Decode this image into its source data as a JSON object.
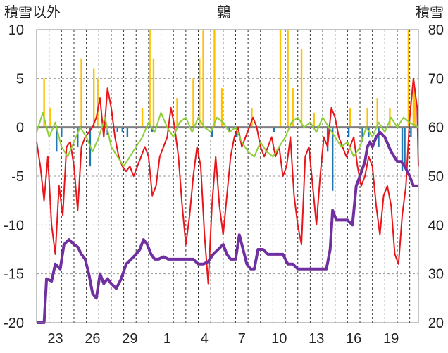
{
  "chart_data": {
    "type": "line",
    "title": "鶉",
    "left_axis_label": "積雪以外",
    "right_axis_label": "積雪",
    "left_axis": {
      "ylim": [
        -20,
        10
      ],
      "ticks": [
        10,
        5,
        0,
        -5,
        -10,
        -15,
        -20
      ]
    },
    "right_axis": {
      "ylim": [
        20,
        80
      ],
      "ticks": [
        80,
        70,
        60,
        50,
        40,
        30,
        20
      ]
    },
    "x_tick_labels": [
      "23",
      "26",
      "29",
      "1",
      "4",
      "7",
      "10",
      "13",
      "16",
      "19"
    ],
    "x_tick_day_index": [
      2,
      5,
      8,
      11,
      14,
      17,
      20,
      23,
      26,
      29
    ],
    "x_range_days": [
      0,
      30.7
    ],
    "grid": true,
    "colors": {
      "temperature_red": "#e8161b",
      "precip_yellow": "#ffc000",
      "bar_blue": "#1f77b4",
      "green": "#8fce3a",
      "snow_purple": "#7030a0",
      "zero_line": "#808080",
      "grid": "#999999",
      "frame": "#888888"
    },
    "series": [
      {
        "axis": "left",
        "style": "line",
        "color": "#e8161b",
        "points": [
          [
            0,
            -1.5
          ],
          [
            0.3,
            -4
          ],
          [
            0.6,
            -7.5
          ],
          [
            0.9,
            -3
          ],
          [
            1.2,
            -10
          ],
          [
            1.5,
            -13
          ],
          [
            1.8,
            -6
          ],
          [
            2.1,
            -9
          ],
          [
            2.4,
            -2
          ],
          [
            2.7,
            -1.5
          ],
          [
            3,
            -4
          ],
          [
            3.3,
            -8.5
          ],
          [
            3.6,
            -2
          ],
          [
            3.9,
            -1
          ],
          [
            4.2,
            -0.5
          ],
          [
            4.5,
            0
          ],
          [
            4.8,
            1
          ],
          [
            5.1,
            3
          ],
          [
            5.4,
            -1
          ],
          [
            5.7,
            4
          ],
          [
            6,
            2
          ],
          [
            6.3,
            -1
          ],
          [
            6.6,
            -3
          ],
          [
            6.9,
            -4
          ],
          [
            7.2,
            -4.5
          ],
          [
            7.5,
            -4
          ],
          [
            7.8,
            -5
          ],
          [
            8.1,
            -4
          ],
          [
            8.4,
            -3
          ],
          [
            8.7,
            -2
          ],
          [
            9,
            -3
          ],
          [
            9.3,
            -7
          ],
          [
            9.6,
            -6
          ],
          [
            9.9,
            -3
          ],
          [
            10.2,
            -2
          ],
          [
            10.5,
            -1
          ],
          [
            10.8,
            2
          ],
          [
            11.1,
            0
          ],
          [
            11.4,
            -3
          ],
          [
            11.7,
            -8
          ],
          [
            12,
            -12
          ],
          [
            12.3,
            -9
          ],
          [
            12.6,
            -5
          ],
          [
            12.9,
            -2
          ],
          [
            13.2,
            -4
          ],
          [
            13.5,
            -11
          ],
          [
            13.8,
            -16
          ],
          [
            14.1,
            -8
          ],
          [
            14.4,
            -3
          ],
          [
            14.7,
            -8
          ],
          [
            15,
            -11
          ],
          [
            15.3,
            -7
          ],
          [
            15.6,
            -3
          ],
          [
            15.9,
            -1
          ],
          [
            16.2,
            0
          ],
          [
            16.5,
            -2
          ],
          [
            16.8,
            -1
          ],
          [
            17.1,
            0
          ],
          [
            17.4,
            1
          ],
          [
            17.7,
            0
          ],
          [
            18,
            -2
          ],
          [
            18.3,
            -3
          ],
          [
            18.6,
            -2
          ],
          [
            18.9,
            -1
          ],
          [
            19.2,
            -3
          ],
          [
            19.5,
            -2
          ],
          [
            19.8,
            -5
          ],
          [
            20.1,
            -4
          ],
          [
            20.4,
            -1
          ],
          [
            20.7,
            -7
          ],
          [
            21,
            -10
          ],
          [
            21.3,
            -12
          ],
          [
            21.6,
            -3
          ],
          [
            21.9,
            -2
          ],
          [
            22.2,
            -6
          ],
          [
            22.5,
            -10
          ],
          [
            22.8,
            -5
          ],
          [
            23.1,
            -1
          ],
          [
            23.4,
            -2
          ],
          [
            23.7,
            2
          ],
          [
            24,
            1
          ],
          [
            24.3,
            -1
          ],
          [
            24.6,
            -2
          ],
          [
            24.9,
            -3
          ],
          [
            25.2,
            -2
          ],
          [
            25.5,
            -1
          ],
          [
            25.8,
            -4
          ],
          [
            26.1,
            -6
          ],
          [
            26.4,
            -5
          ],
          [
            26.7,
            -3
          ],
          [
            27,
            -4
          ],
          [
            27.3,
            -8
          ],
          [
            27.6,
            -11
          ],
          [
            27.9,
            -7
          ],
          [
            28.2,
            -6
          ],
          [
            28.5,
            -8
          ],
          [
            28.8,
            -13
          ],
          [
            29.1,
            -14
          ],
          [
            29.4,
            -9
          ],
          [
            29.7,
            -6
          ],
          [
            30,
            1
          ],
          [
            30.3,
            5
          ],
          [
            30.6,
            2
          ],
          [
            30.7,
            -4
          ]
        ]
      },
      {
        "axis": "left",
        "style": "line",
        "color": "#8fce3a",
        "points": [
          [
            0,
            -0.5
          ],
          [
            0.5,
            1.5
          ],
          [
            1,
            -1
          ],
          [
            1.5,
            0.5
          ],
          [
            2,
            -2
          ],
          [
            2.5,
            -3
          ],
          [
            3,
            -1.5
          ],
          [
            3.5,
            0
          ],
          [
            4,
            -1
          ],
          [
            4.5,
            -2.5
          ],
          [
            5,
            -1
          ],
          [
            5.5,
            1
          ],
          [
            6,
            -2
          ],
          [
            6.5,
            -3
          ],
          [
            7,
            -4
          ],
          [
            7.5,
            -3
          ],
          [
            8,
            -2
          ],
          [
            8.5,
            -1
          ],
          [
            9,
            0.5
          ],
          [
            9.5,
            -0.5
          ],
          [
            10,
            1.5
          ],
          [
            10.5,
            0
          ],
          [
            11,
            -1
          ],
          [
            11.5,
            0.5
          ],
          [
            12,
            1
          ],
          [
            12.5,
            -0.5
          ],
          [
            13,
            1
          ],
          [
            13.5,
            0
          ],
          [
            14,
            -0.5
          ],
          [
            14.5,
            1
          ],
          [
            15,
            0.5
          ],
          [
            15.5,
            -0.5
          ],
          [
            16,
            0
          ],
          [
            16.5,
            -1.5
          ],
          [
            17,
            -2.5
          ],
          [
            17.5,
            -3
          ],
          [
            18,
            -1.5
          ],
          [
            18.5,
            -2.5
          ],
          [
            19,
            -3
          ],
          [
            19.5,
            -2
          ],
          [
            20,
            -1
          ],
          [
            20.5,
            0.5
          ],
          [
            21,
            1
          ],
          [
            21.5,
            0
          ],
          [
            22,
            0.5
          ],
          [
            22.5,
            -0.5
          ],
          [
            23,
            1
          ],
          [
            23.5,
            0
          ],
          [
            24,
            -1
          ],
          [
            24.5,
            -2
          ],
          [
            25,
            -1.5
          ],
          [
            25.5,
            -3
          ],
          [
            26,
            -2
          ],
          [
            26.5,
            0
          ],
          [
            27,
            -1
          ],
          [
            27.5,
            0.5
          ],
          [
            28,
            -0.5
          ],
          [
            28.5,
            1
          ],
          [
            29,
            0
          ],
          [
            29.5,
            1
          ],
          [
            30,
            0.5
          ],
          [
            30.7,
            0
          ]
        ]
      },
      {
        "axis": "left",
        "style": "bars",
        "color": "#ffc000",
        "points": [
          [
            0.6,
            5
          ],
          [
            1.1,
            2
          ],
          [
            3.6,
            7
          ],
          [
            4.6,
            6
          ],
          [
            4.9,
            5
          ],
          [
            8.5,
            2
          ],
          [
            9.1,
            10
          ],
          [
            9.4,
            7
          ],
          [
            11.3,
            3
          ],
          [
            12.6,
            5
          ],
          [
            13.1,
            7
          ],
          [
            13.4,
            10
          ],
          [
            14.3,
            10
          ],
          [
            14.9,
            4
          ],
          [
            17.3,
            2
          ],
          [
            19.6,
            10
          ],
          [
            20.2,
            10
          ],
          [
            20.6,
            4
          ],
          [
            21.3,
            8
          ],
          [
            22.3,
            1.5
          ],
          [
            25.2,
            2
          ],
          [
            26.6,
            2
          ],
          [
            27.4,
            3
          ],
          [
            28.4,
            2
          ],
          [
            29.9,
            10
          ],
          [
            30.3,
            5
          ],
          [
            30.4,
            4
          ]
        ]
      },
      {
        "axis": "left",
        "style": "bars",
        "color": "#1f77b4",
        "points": [
          [
            1.6,
            -2.5
          ],
          [
            2.0,
            -1.0
          ],
          [
            3.3,
            -2.0
          ],
          [
            4.3,
            -4.0
          ],
          [
            5.7,
            -0.8
          ],
          [
            6.5,
            -0.5
          ],
          [
            6.9,
            -0.5
          ],
          [
            7.3,
            -1.0
          ],
          [
            9.3,
            -0.5
          ],
          [
            14.1,
            -1.0
          ],
          [
            15.5,
            -0.5
          ],
          [
            16.1,
            -1.0
          ],
          [
            19.1,
            -0.5
          ],
          [
            23.4,
            -2.5
          ],
          [
            23.8,
            -6.5
          ],
          [
            25.1,
            -1.0
          ],
          [
            26.2,
            -1.5
          ],
          [
            26.7,
            -1.0
          ],
          [
            27.5,
            -2.0
          ],
          [
            29.4,
            -4.5
          ],
          [
            29.6,
            -4.0
          ],
          [
            30.1,
            -1.0
          ]
        ]
      },
      {
        "axis": "right",
        "style": "line",
        "color": "#7030a0",
        "points": [
          [
            0,
            20
          ],
          [
            0.6,
            20
          ],
          [
            0.8,
            29
          ],
          [
            1.2,
            28.5
          ],
          [
            1.5,
            32
          ],
          [
            1.9,
            31
          ],
          [
            2.2,
            36
          ],
          [
            2.6,
            37
          ],
          [
            3,
            36
          ],
          [
            3.3,
            35.5
          ],
          [
            3.6,
            34
          ],
          [
            3.9,
            33
          ],
          [
            4.2,
            30
          ],
          [
            4.5,
            26
          ],
          [
            4.8,
            25
          ],
          [
            5.1,
            30
          ],
          [
            5.4,
            28
          ],
          [
            5.7,
            29
          ],
          [
            6,
            28
          ],
          [
            6.4,
            27
          ],
          [
            6.8,
            29
          ],
          [
            7.2,
            32
          ],
          [
            7.6,
            33
          ],
          [
            8.0,
            34
          ],
          [
            8.3,
            35
          ],
          [
            8.6,
            37
          ],
          [
            8.9,
            36
          ],
          [
            9.2,
            34
          ],
          [
            9.5,
            33
          ],
          [
            9.8,
            33
          ],
          [
            10.2,
            33.5
          ],
          [
            10.6,
            33
          ],
          [
            11,
            33
          ],
          [
            11.4,
            33
          ],
          [
            11.8,
            33
          ],
          [
            12.2,
            33
          ],
          [
            12.6,
            33
          ],
          [
            13.0,
            32
          ],
          [
            13.4,
            32
          ],
          [
            13.8,
            32.5
          ],
          [
            14.2,
            34
          ],
          [
            14.6,
            35
          ],
          [
            15,
            36
          ],
          [
            15.3,
            34
          ],
          [
            15.6,
            33
          ],
          [
            16.0,
            33
          ],
          [
            16.3,
            38
          ],
          [
            16.6,
            35
          ],
          [
            16.9,
            32
          ],
          [
            17.2,
            31
          ],
          [
            17.5,
            31
          ],
          [
            17.8,
            35
          ],
          [
            18.2,
            35
          ],
          [
            18.6,
            34
          ],
          [
            19,
            34
          ],
          [
            19.4,
            34
          ],
          [
            19.8,
            34
          ],
          [
            20.2,
            32
          ],
          [
            20.6,
            32
          ],
          [
            21.0,
            31
          ],
          [
            21.5,
            31
          ],
          [
            22,
            31
          ],
          [
            22.5,
            31
          ],
          [
            23,
            31
          ],
          [
            23.3,
            31
          ],
          [
            23.6,
            35
          ],
          [
            23.8,
            43
          ],
          [
            24.1,
            41
          ],
          [
            24.5,
            41
          ],
          [
            25,
            41
          ],
          [
            25.4,
            40
          ],
          [
            25.7,
            48
          ],
          [
            26.0,
            50
          ],
          [
            26.4,
            53
          ],
          [
            26.6,
            56
          ],
          [
            26.8,
            57
          ],
          [
            27.0,
            56
          ],
          [
            27.3,
            58
          ],
          [
            27.6,
            59
          ],
          [
            28.0,
            58
          ],
          [
            28.5,
            55
          ],
          [
            29.0,
            53
          ],
          [
            29.3,
            53
          ],
          [
            29.6,
            52
          ],
          [
            30.0,
            50
          ],
          [
            30.3,
            48
          ],
          [
            30.7,
            48
          ]
        ]
      }
    ]
  }
}
